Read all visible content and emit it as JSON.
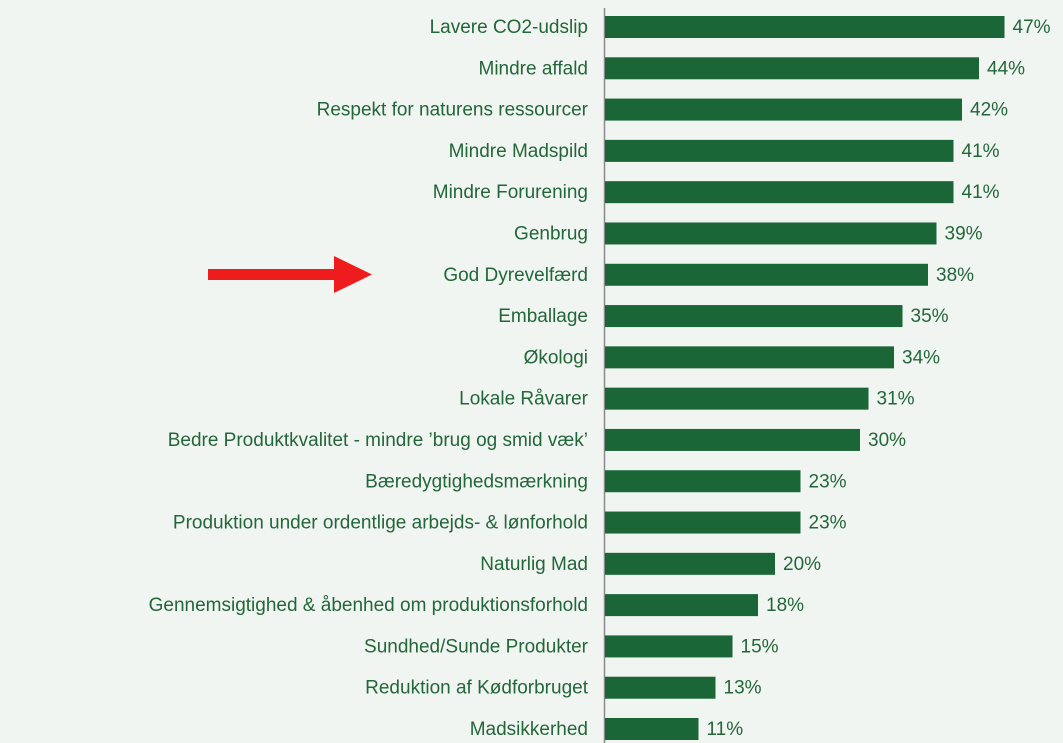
{
  "chart_data": {
    "type": "barh",
    "categories": [
      "Lavere CO2-udslip",
      "Mindre affald",
      "Respekt for naturens ressourcer",
      "Mindre Madspild",
      "Mindre Forurening",
      "Genbrug",
      "God Dyrevelfærd",
      "Emballage",
      "Økologi",
      "Lokale Råvarer",
      "Bedre Produktkvalitet - mindre ’brug og smid væk’",
      "Bæredygtighedsmærkning",
      "Produktion under ordentlige arbejds- & lønforhold",
      "Naturlig Mad",
      "Gennemsigtighed & åbenhed om produktionsforhold",
      "Sundhed/Sunde Produkter",
      "Reduktion af Kødforbruget",
      "Madsikkerhed"
    ],
    "values": [
      47,
      44,
      42,
      41,
      41,
      39,
      38,
      35,
      34,
      31,
      30,
      23,
      23,
      20,
      18,
      15,
      13,
      11
    ],
    "value_labels": [
      "47%",
      "44%",
      "42%",
      "41%",
      "41%",
      "39%",
      "38%",
      "35%",
      "34%",
      "31%",
      "30%",
      "23%",
      "23%",
      "20%",
      "18%",
      "15%",
      "13%",
      "11%"
    ],
    "color": "#1b6636"
  }
}
